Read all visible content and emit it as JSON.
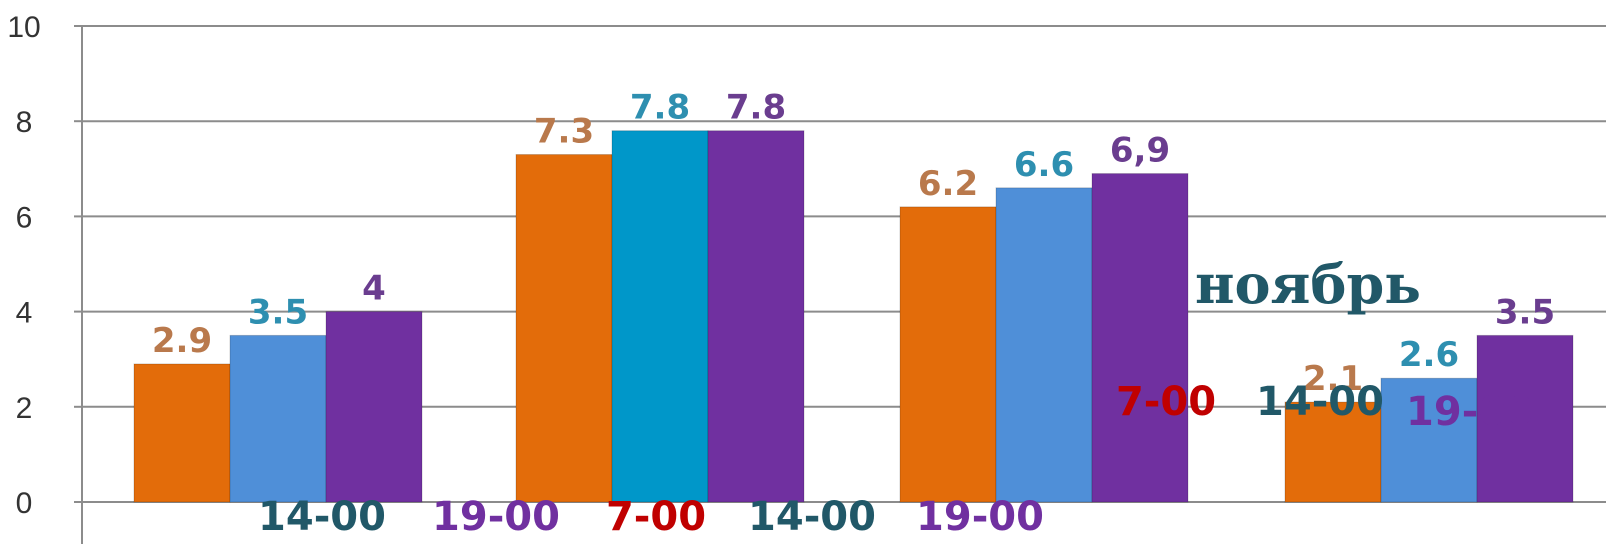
{
  "chart_data": {
    "type": "bar",
    "groups": [
      {
        "values": [
          2.9,
          3.5,
          4
        ],
        "labels": [
          "2.9",
          "3.5",
          "4"
        ]
      },
      {
        "values": [
          7.3,
          7.8,
          7.8
        ],
        "labels": [
          "7.3",
          "7.8",
          "7.8"
        ]
      },
      {
        "values": [
          6.2,
          6.6,
          6.9
        ],
        "labels": [
          "6.2",
          "6.6",
          "6,9"
        ]
      },
      {
        "values": [
          2.1,
          2.6,
          3.5
        ],
        "labels": [
          "2.1",
          "2.6",
          "3.5"
        ]
      }
    ],
    "series_colors": [
      "#E36C0A",
      "#4F8FD8",
      "#7030A0"
    ],
    "highlight_color": "#0097C9",
    "label_colors": [
      "#B9794C",
      "#2E8FB0",
      "#6A3D8F"
    ],
    "yticks": [
      "0",
      "2",
      "4",
      "6",
      "8",
      "10"
    ],
    "ylim": [
      0,
      10
    ],
    "grid": true,
    "category_labels": [
      {
        "text": "14-00",
        "color": "#215868"
      },
      {
        "text": "19-00",
        "color": "#7030A0"
      },
      {
        "text": "7-00",
        "color": "#C00000"
      },
      {
        "text": "14-00",
        "color": "#215868"
      },
      {
        "text": "19-00",
        "color": "#7030A0"
      }
    ],
    "side_labels": [
      {
        "text": "7-00",
        "color": "#C00000"
      },
      {
        "text": "14-00",
        "color": "#215868"
      },
      {
        "text": "19-00",
        "color": "#7030A0"
      }
    ],
    "annotation": "ноябрь"
  }
}
